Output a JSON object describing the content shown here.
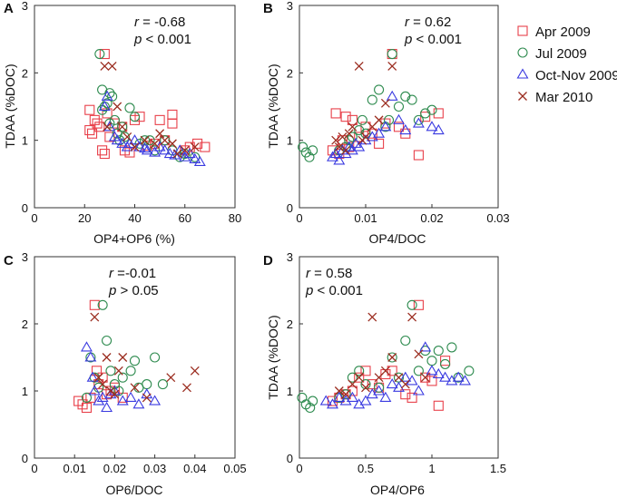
{
  "legend": [
    {
      "name": "Apr 2009",
      "marker": "square",
      "color": "#e8404a"
    },
    {
      "name": "Jul 2009",
      "marker": "circle",
      "color": "#2e8b4f"
    },
    {
      "name": "Oct-Nov 2009",
      "marker": "triangle",
      "color": "#3a3ae0"
    },
    {
      "name": "Mar 2010",
      "marker": "x",
      "color": "#9b2d20"
    }
  ],
  "chart_data": [
    {
      "panel": "A",
      "type": "scatter",
      "xlabel": "OP4+OP6 (%)",
      "ylabel": "TDAA (%DOC)",
      "xlim": [
        0,
        80
      ],
      "ylim": [
        0,
        3
      ],
      "xticks": [
        "0",
        "20",
        "40",
        "60",
        "80"
      ],
      "yticks": [
        "0",
        "1",
        "2",
        "3"
      ],
      "xtick_values": [
        0,
        20,
        40,
        60,
        80
      ],
      "ytick_values": [
        0,
        1,
        2,
        3
      ],
      "stat_r": "-0.68",
      "stat_p": "< 0.001",
      "series": [
        {
          "name": "Apr 2009",
          "x": [
            22,
            22,
            23,
            24,
            25,
            26,
            27,
            28,
            28,
            29,
            30,
            32,
            35,
            36,
            38,
            40,
            42,
            45,
            48,
            50,
            52,
            55,
            55,
            60,
            62,
            65,
            68
          ],
          "y": [
            1.45,
            1.15,
            1.1,
            1.3,
            1.25,
            1.2,
            0.85,
            0.8,
            2.28,
            1.4,
            1.05,
            1.25,
            1.2,
            0.85,
            0.82,
            1.3,
            1.35,
            0.92,
            0.95,
            1.3,
            1.0,
            1.38,
            1.25,
            0.85,
            0.9,
            0.95,
            0.9
          ]
        },
        {
          "name": "Jul 2009",
          "x": [
            26,
            27,
            27,
            28,
            29,
            30,
            30,
            31,
            32,
            33,
            34,
            35,
            36,
            38,
            40,
            42,
            44,
            46,
            48,
            52,
            55,
            58,
            60,
            64
          ],
          "y": [
            2.28,
            1.75,
            1.45,
            1.5,
            1.55,
            1.7,
            1.25,
            1.65,
            1.3,
            1.1,
            1.0,
            1.2,
            1.05,
            1.48,
            1.35,
            0.95,
            1.0,
            1.0,
            0.85,
            1.0,
            0.85,
            0.75,
            0.8,
            0.75
          ]
        },
        {
          "name": "Oct-Nov 2009",
          "x": [
            28,
            29,
            30,
            32,
            33,
            35,
            37,
            38,
            40,
            42,
            44,
            45,
            48,
            50,
            52,
            54,
            56,
            58,
            60,
            62,
            64,
            66
          ],
          "y": [
            1.5,
            1.65,
            1.2,
            1.05,
            1.0,
            0.95,
            0.9,
            0.95,
            1.0,
            0.9,
            0.88,
            0.85,
            0.82,
            0.9,
            0.85,
            0.8,
            0.78,
            0.85,
            0.75,
            0.8,
            0.72,
            0.68
          ]
        },
        {
          "name": "Mar 2010",
          "x": [
            28,
            29,
            31,
            33,
            35,
            37,
            40,
            44,
            48,
            50,
            52,
            55,
            57,
            60,
            64
          ],
          "y": [
            2.1,
            1.2,
            2.1,
            1.5,
            1.2,
            1.05,
            0.9,
            1.0,
            0.95,
            1.1,
            1.0,
            0.95,
            0.8,
            0.85,
            0.9
          ]
        }
      ]
    },
    {
      "panel": "B",
      "type": "scatter",
      "xlabel": "OP4/DOC",
      "ylabel": "TDAA (%DOC)",
      "xlim": [
        0,
        0.03
      ],
      "ylim": [
        0,
        3
      ],
      "xticks": [
        "0",
        "0.01",
        "0.02",
        "0.03"
      ],
      "yticks": [
        "0",
        "1",
        "2",
        "3"
      ],
      "xtick_values": [
        0,
        0.01,
        0.02,
        0.03
      ],
      "ytick_values": [
        0,
        1,
        2,
        3
      ],
      "stat_r": "0.62",
      "stat_p": "< 0.001",
      "series": [
        {
          "name": "Apr 2009",
          "x": [
            0.005,
            0.0055,
            0.006,
            0.0065,
            0.007,
            0.0075,
            0.008,
            0.009,
            0.01,
            0.011,
            0.012,
            0.013,
            0.014,
            0.015,
            0.016,
            0.018,
            0.019,
            0.021
          ],
          "y": [
            0.85,
            1.4,
            0.8,
            1.0,
            1.35,
            0.9,
            1.3,
            1.05,
            1.2,
            1.1,
            0.95,
            1.25,
            2.28,
            1.2,
            1.1,
            0.78,
            1.35,
            1.4
          ]
        },
        {
          "name": "Jul 2009",
          "x": [
            0.0005,
            0.001,
            0.0015,
            0.002,
            0.006,
            0.007,
            0.0075,
            0.008,
            0.009,
            0.0095,
            0.01,
            0.011,
            0.012,
            0.013,
            0.0135,
            0.014,
            0.015,
            0.016,
            0.017,
            0.018,
            0.019,
            0.02
          ],
          "y": [
            0.9,
            0.82,
            0.75,
            0.85,
            0.85,
            0.9,
            1.0,
            1.05,
            1.15,
            1.3,
            1.1,
            1.6,
            1.75,
            1.2,
            1.3,
            2.28,
            1.5,
            1.65,
            1.6,
            1.3,
            1.4,
            1.45
          ]
        },
        {
          "name": "Oct-Nov 2009",
          "x": [
            0.005,
            0.0055,
            0.006,
            0.0065,
            0.007,
            0.0075,
            0.008,
            0.0085,
            0.009,
            0.01,
            0.011,
            0.012,
            0.013,
            0.014,
            0.015,
            0.016,
            0.018,
            0.02,
            0.021
          ],
          "y": [
            0.75,
            0.8,
            0.7,
            0.85,
            0.8,
            0.9,
            0.85,
            0.95,
            0.9,
            1.0,
            1.05,
            1.1,
            1.2,
            1.65,
            1.3,
            1.15,
            1.25,
            1.2,
            1.15
          ]
        },
        {
          "name": "Mar 2010",
          "x": [
            0.0055,
            0.006,
            0.0065,
            0.007,
            0.0075,
            0.008,
            0.009,
            0.0095,
            0.01,
            0.011,
            0.012,
            0.013,
            0.014
          ],
          "y": [
            1.0,
            0.9,
            1.05,
            0.85,
            1.1,
            1.2,
            2.1,
            1.0,
            1.05,
            1.2,
            1.3,
            1.55,
            2.1
          ]
        }
      ]
    },
    {
      "panel": "C",
      "type": "scatter",
      "xlabel": "OP6/DOC",
      "ylabel": "",
      "xlim": [
        0,
        0.05
      ],
      "ylim": [
        0,
        3
      ],
      "xticks": [
        "0",
        "0.01",
        "0.02",
        "0.03",
        "0.04",
        "0.05"
      ],
      "yticks": [
        "0",
        "1",
        "2",
        "3"
      ],
      "xtick_values": [
        0,
        0.01,
        0.02,
        0.03,
        0.04,
        0.05
      ],
      "ytick_values": [
        0,
        1,
        2,
        3
      ],
      "stat_r": "-0.01",
      "stat_p": "> 0.05",
      "series": [
        {
          "name": "Apr 2009",
          "x": [
            0.011,
            0.012,
            0.013,
            0.014,
            0.015,
            0.0155,
            0.016,
            0.017,
            0.018,
            0.019,
            0.02,
            0.022
          ],
          "y": [
            0.85,
            0.8,
            0.75,
            0.9,
            2.28,
            1.3,
            1.1,
            1.2,
            0.95,
            1.0,
            1.05,
            0.9
          ]
        },
        {
          "name": "Jul 2009",
          "x": [
            0.013,
            0.014,
            0.015,
            0.016,
            0.017,
            0.018,
            0.019,
            0.02,
            0.021,
            0.022,
            0.024,
            0.025,
            0.026,
            0.028,
            0.03,
            0.032
          ],
          "y": [
            0.9,
            1.5,
            1.2,
            1.05,
            2.28,
            1.75,
            1.3,
            1.1,
            1.0,
            1.2,
            1.3,
            1.45,
            1.05,
            1.1,
            1.5,
            1.1
          ]
        },
        {
          "name": "Oct-Nov 2009",
          "x": [
            0.013,
            0.014,
            0.0145,
            0.015,
            0.016,
            0.017,
            0.018,
            0.019,
            0.02,
            0.022,
            0.024,
            0.026,
            0.028,
            0.03
          ],
          "y": [
            1.65,
            1.5,
            1.2,
            1.0,
            0.85,
            0.9,
            0.75,
            0.95,
            1.0,
            0.85,
            0.9,
            0.8,
            0.95,
            0.85
          ]
        },
        {
          "name": "Mar 2010",
          "x": [
            0.015,
            0.016,
            0.017,
            0.018,
            0.019,
            0.02,
            0.021,
            0.022,
            0.025,
            0.028,
            0.034,
            0.038,
            0.04
          ],
          "y": [
            2.1,
            1.2,
            1.1,
            1.5,
            1.0,
            0.95,
            1.3,
            1.5,
            1.05,
            0.9,
            1.2,
            1.05,
            1.3
          ]
        }
      ]
    },
    {
      "panel": "D",
      "type": "scatter",
      "xlabel": "OP4/OP6",
      "ylabel": "TDAA (%DOC)",
      "xlim": [
        0,
        1.5
      ],
      "ylim": [
        0,
        3
      ],
      "xticks": [
        "0",
        "0.5",
        "1",
        "1.5"
      ],
      "yticks": [
        "0",
        "1",
        "2",
        "3"
      ],
      "xtick_values": [
        0,
        0.5,
        1,
        1.5
      ],
      "ytick_values": [
        0,
        1,
        2,
        3
      ],
      "stat_r": "0.58",
      "stat_p": "< 0.001",
      "series": [
        {
          "name": "Apr 2009",
          "x": [
            0.25,
            0.3,
            0.35,
            0.4,
            0.45,
            0.5,
            0.55,
            0.6,
            0.65,
            0.7,
            0.8,
            0.85,
            0.9,
            0.95,
            1.0,
            1.05,
            1.1
          ],
          "y": [
            0.85,
            0.9,
            0.95,
            1.0,
            1.2,
            1.3,
            1.1,
            1.05,
            1.25,
            1.3,
            0.95,
            0.9,
            2.28,
            1.2,
            1.15,
            0.78,
            1.45
          ]
        },
        {
          "name": "Jul 2009",
          "x": [
            0.02,
            0.05,
            0.08,
            0.1,
            0.3,
            0.35,
            0.4,
            0.45,
            0.5,
            0.6,
            0.7,
            0.75,
            0.8,
            0.85,
            0.9,
            0.95,
            1.0,
            1.05,
            1.1,
            1.15,
            1.2,
            1.28
          ],
          "y": [
            0.9,
            0.8,
            0.75,
            0.85,
            0.9,
            0.95,
            1.2,
            1.3,
            1.1,
            1.05,
            1.5,
            1.2,
            1.75,
            2.28,
            1.3,
            1.6,
            1.45,
            1.6,
            1.4,
            1.65,
            1.2,
            1.3
          ]
        },
        {
          "name": "Oct-Nov 2009",
          "x": [
            0.2,
            0.25,
            0.3,
            0.35,
            0.4,
            0.45,
            0.5,
            0.55,
            0.6,
            0.65,
            0.7,
            0.75,
            0.8,
            0.85,
            0.9,
            0.95,
            1.0,
            1.05,
            1.1,
            1.15,
            1.2,
            1.25
          ],
          "y": [
            0.85,
            0.8,
            0.9,
            0.85,
            0.9,
            0.8,
            0.85,
            0.95,
            1.0,
            0.9,
            1.1,
            1.05,
            1.2,
            1.15,
            1.0,
            1.65,
            1.3,
            1.25,
            1.2,
            1.15,
            1.2,
            1.15
          ]
        },
        {
          "name": "Mar 2010",
          "x": [
            0.3,
            0.35,
            0.4,
            0.45,
            0.5,
            0.55,
            0.6,
            0.65,
            0.7,
            0.75,
            0.8,
            0.85,
            0.9,
            0.95
          ],
          "y": [
            1.0,
            0.95,
            1.1,
            1.2,
            1.05,
            2.1,
            1.2,
            1.3,
            1.5,
            1.2,
            1.1,
            2.1,
            1.55,
            1.2
          ]
        }
      ]
    }
  ]
}
